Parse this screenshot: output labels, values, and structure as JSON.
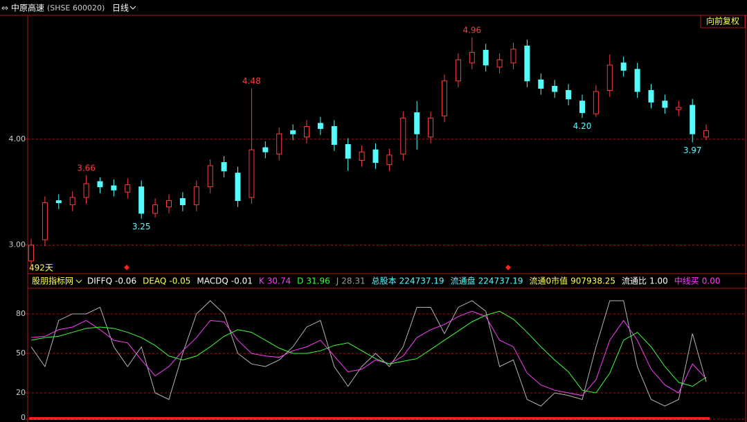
{
  "header": {
    "name": "中原高速",
    "code": "(SHSE 600020)",
    "period": "日线",
    "adjust": "向前复权",
    "days": "492天"
  },
  "chart_data": [
    {
      "type": "candlestick",
      "up_color": "#ff3c3c",
      "down_color": "#54fcfc",
      "open": [
        2.85,
        3.05,
        3.42,
        3.38,
        3.45,
        3.6,
        3.56,
        3.5,
        3.55,
        3.3,
        3.36,
        3.44,
        3.38,
        3.55,
        3.78,
        3.68,
        3.45,
        3.92,
        3.86,
        4.08,
        4.02,
        4.15,
        4.12,
        3.95,
        3.8,
        3.9,
        3.76,
        3.86,
        4.25,
        4.02,
        4.22,
        4.55,
        4.72,
        4.84,
        4.68,
        4.72,
        4.88,
        4.56,
        4.5,
        4.46,
        4.36,
        4.24,
        4.46,
        4.72,
        4.66,
        4.46,
        4.36,
        4.28,
        4.32,
        4.02
      ],
      "high": [
        3.06,
        3.46,
        3.48,
        3.51,
        3.66,
        3.64,
        3.62,
        3.63,
        3.61,
        3.44,
        3.48,
        3.5,
        3.61,
        3.81,
        3.84,
        3.74,
        4.48,
        3.98,
        4.11,
        4.14,
        4.18,
        4.21,
        4.18,
        4.01,
        3.94,
        3.96,
        3.91,
        4.26,
        4.36,
        4.26,
        4.61,
        4.81,
        4.96,
        4.9,
        4.81,
        4.91,
        4.94,
        4.62,
        4.56,
        4.52,
        4.42,
        4.51,
        4.8,
        4.78,
        4.72,
        4.52,
        4.42,
        4.36,
        4.38,
        4.14
      ],
      "low": [
        2.79,
        2.99,
        3.34,
        3.32,
        3.39,
        3.49,
        3.46,
        3.44,
        3.25,
        3.26,
        3.3,
        3.32,
        3.32,
        3.49,
        3.64,
        3.36,
        3.39,
        3.82,
        3.8,
        3.99,
        3.96,
        4.04,
        3.89,
        3.7,
        3.74,
        3.72,
        3.7,
        3.8,
        3.9,
        3.96,
        4.16,
        4.49,
        4.66,
        4.64,
        4.62,
        4.66,
        4.49,
        4.42,
        4.39,
        4.32,
        4.2,
        4.21,
        4.4,
        4.59,
        4.39,
        4.29,
        4.24,
        4.22,
        3.97,
        3.99
      ],
      "close": [
        3.0,
        3.4,
        3.4,
        3.45,
        3.58,
        3.55,
        3.52,
        3.57,
        3.3,
        3.38,
        3.42,
        3.38,
        3.55,
        3.75,
        3.7,
        3.42,
        3.9,
        3.88,
        4.05,
        4.05,
        4.12,
        4.1,
        3.95,
        3.82,
        3.88,
        3.78,
        3.85,
        4.2,
        4.05,
        4.2,
        4.55,
        4.75,
        4.82,
        4.7,
        4.75,
        4.85,
        4.55,
        4.48,
        4.45,
        4.38,
        4.25,
        4.45,
        4.7,
        4.65,
        4.45,
        4.35,
        4.3,
        4.3,
        4.05,
        4.08
      ],
      "ylim": [
        2.73,
        5.17
      ],
      "yticks": [
        {
          "value": 3,
          "label": "3.00"
        },
        {
          "value": 4,
          "label": "4.00"
        }
      ],
      "high_labels": [
        {
          "value": 3.66,
          "label": "3.66"
        },
        {
          "value": 4.48,
          "label": "4.48"
        },
        {
          "value": 4.96,
          "label": "4.96"
        }
      ],
      "low_labels": [
        {
          "value": 3.25,
          "label": "3.25"
        },
        {
          "value": 4.2,
          "label": "4.20"
        },
        {
          "value": 3.97,
          "label": "3.97"
        }
      ],
      "grid": true
    },
    {
      "type": "line",
      "title": "股朋指标网",
      "indicators": [
        {
          "name": "DIFFQ",
          "value": -0.06,
          "color": "#ffffff"
        },
        {
          "name": "DEAQ",
          "value": -0.05,
          "color": "#ffff54"
        },
        {
          "name": "MACDQ",
          "value": -0.01,
          "color": "#ffffff"
        },
        {
          "name": "K",
          "value": 30.74,
          "color": "#ff3cff"
        },
        {
          "name": "D",
          "value": 31.96,
          "color": "#3cff3c"
        },
        {
          "name": "J",
          "value": 28.31,
          "color": "#9a9a9a"
        },
        {
          "name": "总股本",
          "value": 224737.19,
          "color": "#54fcfc"
        },
        {
          "name": "流通盘",
          "value": 224737.19,
          "color": "#54fcfc"
        },
        {
          "name": "流通0市值",
          "value": 907938.25,
          "color": "#ffff54"
        },
        {
          "name": "流通比",
          "value": 1,
          "value_label": "1.00",
          "color": "#ffffff"
        },
        {
          "name": "中线买",
          "value": 0,
          "value_label": "0.00",
          "color": "#ff3cff"
        }
      ],
      "series": [
        {
          "name": "J",
          "color": "#b4b4b4",
          "values": [
            55,
            40,
            75,
            80,
            80,
            85,
            55,
            40,
            55,
            20,
            15,
            50,
            80,
            90,
            80,
            50,
            42,
            40,
            45,
            55,
            70,
            75,
            40,
            25,
            40,
            50,
            40,
            55,
            85,
            85,
            65,
            85,
            90,
            82,
            40,
            45,
            15,
            10,
            20,
            18,
            15,
            55,
            90,
            90,
            40,
            15,
            10,
            15,
            65,
            28.31
          ]
        },
        {
          "name": "K",
          "color": "#ff3cff",
          "values": [
            62,
            63,
            68,
            70,
            75,
            68,
            60,
            58,
            45,
            33,
            40,
            52,
            62,
            75,
            74,
            60,
            50,
            48,
            47,
            52,
            55,
            60,
            48,
            36,
            38,
            45,
            42,
            48,
            62,
            68,
            72,
            78,
            82,
            78,
            60,
            55,
            35,
            26,
            22,
            20,
            18,
            30,
            60,
            75,
            60,
            38,
            26,
            20,
            42,
            30.74
          ]
        },
        {
          "name": "D",
          "color": "#3cff3c",
          "values": [
            60,
            62,
            63,
            66,
            69,
            70,
            69,
            66,
            62,
            56,
            48,
            45,
            48,
            55,
            63,
            68,
            66,
            60,
            54,
            50,
            50,
            52,
            56,
            58,
            52,
            46,
            42,
            44,
            46,
            53,
            60,
            67,
            74,
            79,
            82,
            76,
            66,
            55,
            45,
            36,
            22,
            20,
            35,
            60,
            66,
            55,
            40,
            28,
            25,
            31.96
          ]
        }
      ],
      "ylim": [
        0,
        98.4
      ],
      "yticks": [
        0,
        20,
        50,
        80
      ],
      "grid": true
    }
  ]
}
